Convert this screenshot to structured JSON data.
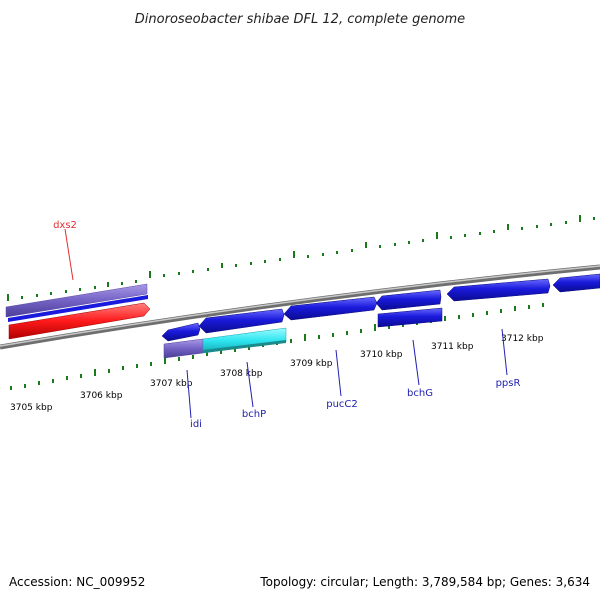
{
  "title": "Dinoroseobacter shibae DFL 12, complete genome",
  "footer": {
    "accession": "Accession: NC_009952",
    "summary": "Topology: circular; Length: 3,789,584 bp; Genes: 3,634"
  },
  "colors": {
    "backbone": "#8c8c8c",
    "ticks": "#1a7a1a",
    "gene_forward": "#1a1adc",
    "gene_reverse": "#1a1adc",
    "gene_highlight_red": "#ff2020",
    "gene_purple": "#7b68c8",
    "gene_cyan": "#33e8f0",
    "label_red": "#e03030",
    "label_blue": "#2020b0"
  },
  "scale": {
    "unit": "kbp",
    "ticks": [
      "3705 kbp",
      "3706 kbp",
      "3707 kbp",
      "3708 kbp",
      "3709 kbp",
      "3710 kbp",
      "3711 kbp",
      "3712 kbp"
    ]
  },
  "genes": [
    {
      "name": "dxs2",
      "label_color": "red"
    },
    {
      "name": "idi",
      "label_color": "blue"
    },
    {
      "name": "bchP",
      "label_color": "blue"
    },
    {
      "name": "pucC2",
      "label_color": "blue"
    },
    {
      "name": "bchG",
      "label_color": "blue"
    },
    {
      "name": "ppsR",
      "label_color": "blue"
    }
  ]
}
